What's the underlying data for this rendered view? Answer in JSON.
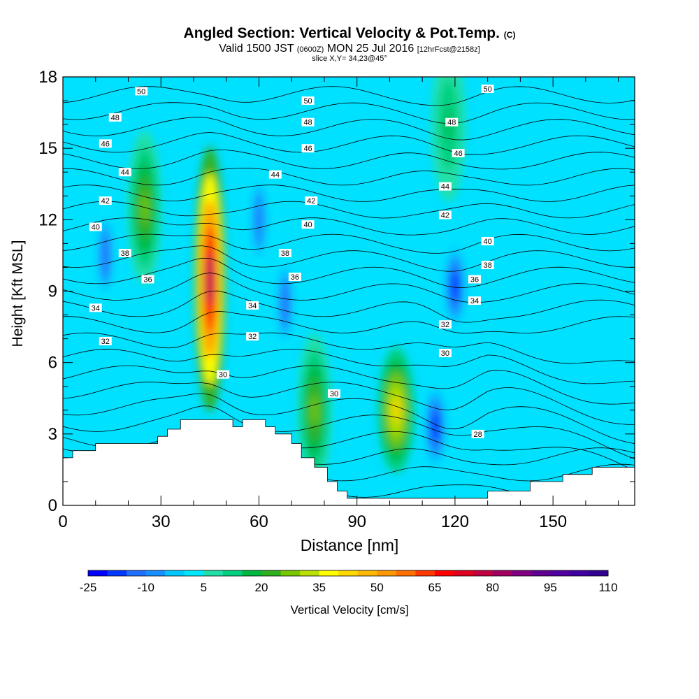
{
  "title": {
    "main": "Angled Section: Vertical Velocity & Pot.Temp.",
    "main_unit": "(C)",
    "valid_prefix": "Valid 1500 JST",
    "valid_zulu": "(0600Z)",
    "valid_date": "MON 25 Jul 2016",
    "valid_fcst": "[12hrFcst@2158z]",
    "slice": "slice X,Y= 34,23@45°"
  },
  "chart_data": {
    "type": "heatmap",
    "xlabel": "Distance [nm]",
    "ylabel": "Height [Kft MSL]",
    "xlim": [
      0,
      175
    ],
    "ylim": [
      0,
      18
    ],
    "x_ticks": [
      0,
      30,
      60,
      90,
      120,
      150
    ],
    "y_ticks": [
      0,
      3,
      6,
      9,
      12,
      15,
      18
    ],
    "colorbar": {
      "label": "Vertical Velocity [cm/s]",
      "min": -25,
      "max": 110,
      "step": 5,
      "tick_labels": [
        -25,
        -10,
        5,
        20,
        35,
        50,
        65,
        80,
        95,
        110
      ],
      "colors": [
        "#0000ff",
        "#0038ff",
        "#2070ff",
        "#1890ff",
        "#00c8ff",
        "#00e8ff",
        "#20e0a8",
        "#00d080",
        "#00b840",
        "#30b020",
        "#78c800",
        "#b8e000",
        "#ffff00",
        "#ffd800",
        "#ffb800",
        "#ff9800",
        "#ff7000",
        "#ff3800",
        "#ff0000",
        "#e00020",
        "#c00040",
        "#a00060",
        "#800080",
        "#600090",
        "#5000a0",
        "#4000a0",
        "#300090"
      ]
    },
    "vertical_velocity_features": [
      {
        "x": 45,
        "z": 9.5,
        "peak": 80
      },
      {
        "x": 25,
        "z": 12.5,
        "peak": 25
      },
      {
        "x": 102,
        "z": 4.0,
        "peak": 40
      },
      {
        "x": 77,
        "z": 4.0,
        "peak": 25
      },
      {
        "x": 118,
        "z": 16.0,
        "peak": 15
      },
      {
        "x": 120,
        "z": 9.2,
        "peak": -25
      },
      {
        "x": 114,
        "z": 3.3,
        "peak": -25
      },
      {
        "x": 13,
        "z": 10.5,
        "peak": -15
      },
      {
        "x": 68,
        "z": 8.5,
        "peak": -15
      },
      {
        "x": 60,
        "z": 12.0,
        "peak": -12
      }
    ],
    "isentropes": [
      {
        "theta": 28,
        "label_x": 127,
        "label_z": 3.0
      },
      {
        "theta": 30,
        "label_x": 49,
        "label_z": 5.5
      },
      {
        "theta": 30,
        "label_x": 83,
        "label_z": 4.7
      },
      {
        "theta": 30,
        "label_x": 117,
        "label_z": 6.4
      },
      {
        "theta": 32,
        "label_x": 13,
        "label_z": 6.9
      },
      {
        "theta": 32,
        "label_x": 58,
        "label_z": 7.1
      },
      {
        "theta": 32,
        "label_x": 117,
        "label_z": 7.6
      },
      {
        "theta": 34,
        "label_x": 10,
        "label_z": 8.3
      },
      {
        "theta": 34,
        "label_x": 58,
        "label_z": 8.4
      },
      {
        "theta": 34,
        "label_x": 126,
        "label_z": 8.6
      },
      {
        "theta": 36,
        "label_x": 26,
        "label_z": 9.5
      },
      {
        "theta": 36,
        "label_x": 71,
        "label_z": 9.6
      },
      {
        "theta": 36,
        "label_x": 126,
        "label_z": 9.5
      },
      {
        "theta": 38,
        "label_x": 19,
        "label_z": 10.6
      },
      {
        "theta": 38,
        "label_x": 68,
        "label_z": 10.6
      },
      {
        "theta": 38,
        "label_x": 130,
        "label_z": 10.1
      },
      {
        "theta": 40,
        "label_x": 10,
        "label_z": 11.7
      },
      {
        "theta": 40,
        "label_x": 75,
        "label_z": 11.8
      },
      {
        "theta": 40,
        "label_x": 130,
        "label_z": 11.1
      },
      {
        "theta": 42,
        "label_x": 13,
        "label_z": 12.8
      },
      {
        "theta": 42,
        "label_x": 76,
        "label_z": 12.8
      },
      {
        "theta": 42,
        "label_x": 117,
        "label_z": 12.2
      },
      {
        "theta": 44,
        "label_x": 19,
        "label_z": 14.0
      },
      {
        "theta": 44,
        "label_x": 65,
        "label_z": 13.9
      },
      {
        "theta": 44,
        "label_x": 117,
        "label_z": 13.4
      },
      {
        "theta": 46,
        "label_x": 13,
        "label_z": 15.2
      },
      {
        "theta": 46,
        "label_x": 75,
        "label_z": 15.0
      },
      {
        "theta": 46,
        "label_x": 121,
        "label_z": 14.8
      },
      {
        "theta": 48,
        "label_x": 16,
        "label_z": 16.3
      },
      {
        "theta": 48,
        "label_x": 75,
        "label_z": 16.1
      },
      {
        "theta": 48,
        "label_x": 119,
        "label_z": 16.1
      },
      {
        "theta": 50,
        "label_x": 24,
        "label_z": 17.4
      },
      {
        "theta": 50,
        "label_x": 75,
        "label_z": 17.0
      },
      {
        "theta": 50,
        "label_x": 130,
        "label_z": 17.5
      }
    ],
    "terrain": [
      [
        0,
        2.0
      ],
      [
        3,
        2.0
      ],
      [
        3,
        2.3
      ],
      [
        10,
        2.3
      ],
      [
        10,
        2.6
      ],
      [
        29,
        2.6
      ],
      [
        29,
        2.9
      ],
      [
        32,
        2.9
      ],
      [
        32,
        3.2
      ],
      [
        36,
        3.2
      ],
      [
        36,
        3.6
      ],
      [
        52,
        3.6
      ],
      [
        52,
        3.3
      ],
      [
        55,
        3.3
      ],
      [
        55,
        3.6
      ],
      [
        62,
        3.6
      ],
      [
        62,
        3.3
      ],
      [
        65,
        3.3
      ],
      [
        65,
        3.0
      ],
      [
        70,
        3.0
      ],
      [
        70,
        2.6
      ],
      [
        73,
        2.6
      ],
      [
        73,
        2.0
      ],
      [
        77,
        2.0
      ],
      [
        77,
        1.6
      ],
      [
        81,
        1.6
      ],
      [
        81,
        1.0
      ],
      [
        84,
        1.0
      ],
      [
        84,
        0.6
      ],
      [
        87,
        0.6
      ],
      [
        87,
        0.3
      ],
      [
        130,
        0.3
      ],
      [
        130,
        0.6
      ],
      [
        143,
        0.6
      ],
      [
        143,
        1.0
      ],
      [
        153,
        1.0
      ],
      [
        153,
        1.3
      ],
      [
        162,
        1.3
      ],
      [
        162,
        1.6
      ],
      [
        175,
        1.6
      ]
    ]
  }
}
